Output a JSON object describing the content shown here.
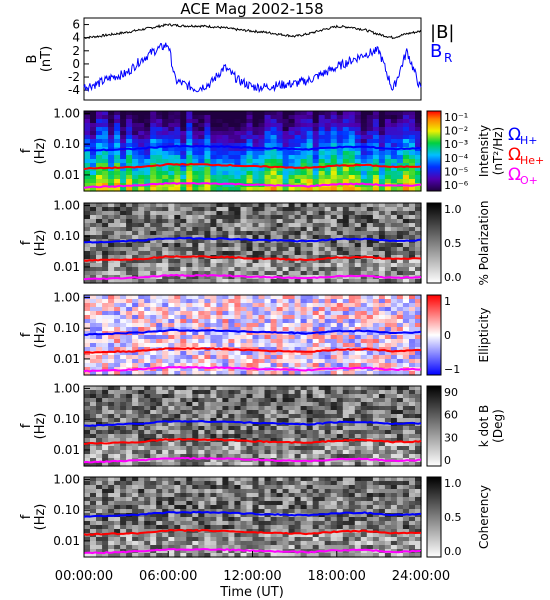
{
  "chart_data": {
    "type": "line",
    "title": "ACE Mag 2002-158",
    "xlabel": "Time (UT)",
    "x_ticks": [
      "00:00:00",
      "06:00:00",
      "12:00:00",
      "18:00:00",
      "24:00:00"
    ],
    "xlim_hours": [
      0,
      24
    ],
    "colors": {
      "B_total": "#000000",
      "B_R": "#0000ff",
      "H_plus": "#0000ff",
      "He_plus": "#ff0000",
      "O_plus": "#ff00ff"
    },
    "field_panel": {
      "ylabel": "B\n(nT)",
      "ylim": [
        -5.5,
        7
      ],
      "y_ticks": [
        "6",
        "4",
        "2",
        "0",
        "-2",
        "-4"
      ],
      "legend": {
        "total": "|B|",
        "radial": "B",
        "radial_sub": "R"
      },
      "series": [
        {
          "name": "|B|",
          "hours": [
            0,
            1,
            2,
            3,
            4,
            5,
            6,
            7,
            8,
            9,
            10,
            11,
            12,
            13,
            14,
            15,
            16,
            17,
            18,
            19,
            20,
            21,
            22,
            23,
            24
          ],
          "values": [
            4.0,
            4.2,
            4.5,
            4.8,
            5.2,
            5.6,
            6.0,
            5.8,
            5.8,
            5.7,
            5.5,
            5.2,
            5.0,
            4.8,
            4.5,
            4.2,
            4.6,
            5.2,
            5.7,
            5.6,
            5.2,
            4.5,
            4.0,
            4.6,
            5.0
          ]
        },
        {
          "name": "B_R",
          "hours": [
            0,
            1,
            2,
            3,
            4,
            5,
            6,
            6.5,
            7,
            8,
            9,
            10,
            11,
            12,
            13,
            14,
            15,
            16,
            17,
            18,
            19,
            20,
            21,
            22,
            23,
            24
          ],
          "values": [
            -3.5,
            -3.0,
            -2.0,
            -1.5,
            0.5,
            2.0,
            3.0,
            -2.5,
            -3.0,
            -3.8,
            -3.0,
            -0.5,
            -2.5,
            -3.5,
            -3.5,
            -3.2,
            -3.0,
            -2.5,
            -1.5,
            -0.5,
            0.5,
            1.5,
            2.0,
            -4.0,
            2.0,
            -4.0
          ]
        }
      ]
    },
    "panels": [
      {
        "type": "heatmap",
        "ylabel": "f\n(Hz)",
        "y_ticks": [
          "1.00",
          "0.10",
          "0.01"
        ],
        "ylim_hz": [
          0.003,
          1.2
        ],
        "colorbar_label": "Intensity\n(nT²/Hz)",
        "colorbar_ticks": [
          "10⁻¹",
          "10⁻²",
          "10⁻³",
          "10⁻⁴",
          "10⁻⁵",
          "10⁻⁶"
        ],
        "colormap": "rainbow"
      },
      {
        "type": "heatmap",
        "ylabel": "f\n(Hz)",
        "y_ticks": [
          "1.00",
          "0.10",
          "0.01"
        ],
        "colorbar_label": "% Polarization",
        "colorbar_ticks": [
          "1.0",
          "0.5",
          "0.0"
        ],
        "colormap": "gray"
      },
      {
        "type": "heatmap",
        "ylabel": "f\n(Hz)",
        "y_ticks": [
          "1.00",
          "0.10",
          "0.01"
        ],
        "colorbar_label": "Ellipticity",
        "colorbar_ticks": [
          "1",
          "0",
          "−1"
        ],
        "colormap": "bwr"
      },
      {
        "type": "heatmap",
        "ylabel": "f\n(Hz)",
        "y_ticks": [
          "1.00",
          "0.10",
          "0.01"
        ],
        "colorbar_label": "k dot B\n(Deg)",
        "colorbar_ticks": [
          "90",
          "60",
          "30",
          "0"
        ],
        "colormap": "gray"
      },
      {
        "type": "heatmap",
        "ylabel": "f\n(Hz)",
        "y_ticks": [
          "1.00",
          "0.10",
          "0.01"
        ],
        "colorbar_label": "Coherency",
        "colorbar_ticks": [
          "1.0",
          "0.5",
          "0.0"
        ],
        "colormap": "gray"
      }
    ],
    "gyrofrequency_legend": [
      {
        "symbol": "Ω",
        "sub": "H+",
        "color": "#0000ff"
      },
      {
        "symbol": "Ω",
        "sub": "He+",
        "color": "#ff0000"
      },
      {
        "symbol": "Ω",
        "sub": "O+",
        "color": "#ff00ff"
      }
    ],
    "gyrofrequency_hz": {
      "hours": [
        0,
        2,
        4,
        6,
        8,
        10,
        12,
        14,
        16,
        18,
        20,
        22,
        24
      ],
      "H_plus": [
        0.062,
        0.066,
        0.072,
        0.085,
        0.085,
        0.083,
        0.076,
        0.072,
        0.068,
        0.08,
        0.082,
        0.07,
        0.074
      ],
      "He_plus": [
        0.016,
        0.017,
        0.018,
        0.022,
        0.022,
        0.021,
        0.019,
        0.018,
        0.017,
        0.02,
        0.021,
        0.018,
        0.019
      ],
      "O_plus": [
        0.004,
        0.0042,
        0.0046,
        0.0053,
        0.0053,
        0.0052,
        0.0048,
        0.0045,
        0.0043,
        0.005,
        0.0051,
        0.0044,
        0.0047
      ]
    }
  }
}
